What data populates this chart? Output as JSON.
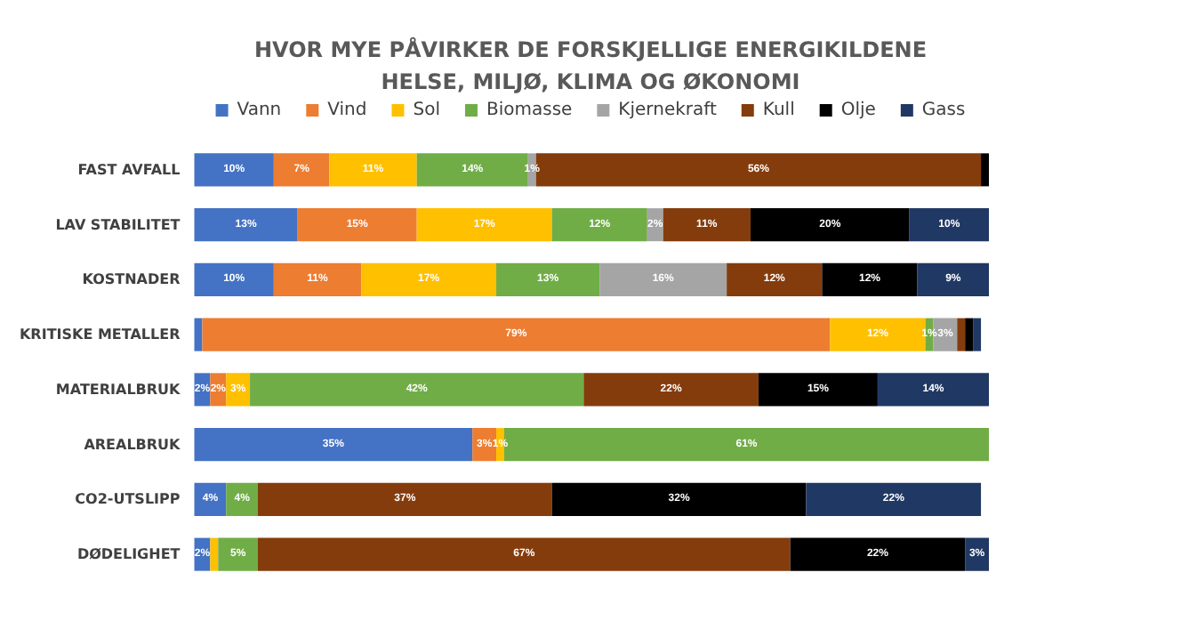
{
  "chart_data": {
    "type": "bar",
    "orientation": "horizontal",
    "stacked": true,
    "title": "HVOR MYE PÅVIRKER DE FORSKJELLIGE ENERGIKILDENE\nHELSE, MILJØ, KLIMA OG ØKONOMI",
    "categories": [
      "FAST AVFALL",
      "LAV STABILITET",
      "KOSTNADER",
      "KRITISKE METALLER",
      "MATERIALBRUK",
      "AREALBRUK",
      "CO2-UTSLIPP",
      "DØDELIGHET"
    ],
    "legend": "top",
    "series": [
      {
        "name": "Vann",
        "color": "#4472c4",
        "values": [
          10,
          13,
          10,
          1,
          2,
          35,
          4,
          2
        ],
        "value_labels": [
          "10%",
          "13%",
          "10%",
          null,
          "2%",
          "35%",
          "4%",
          "2%"
        ]
      },
      {
        "name": "Vind",
        "color": "#ed7d31",
        "values": [
          7,
          15,
          11,
          79,
          2,
          3,
          0,
          0
        ],
        "value_labels": [
          "7%",
          "15%",
          "11%",
          "79%",
          "2%",
          "3%",
          null,
          null
        ]
      },
      {
        "name": "Sol",
        "color": "#ffc000",
        "values": [
          11,
          17,
          17,
          12,
          3,
          1,
          0,
          1
        ],
        "value_labels": [
          "11%",
          "17%",
          "17%",
          "12%",
          "3%",
          "1%",
          null,
          null
        ]
      },
      {
        "name": "Biomasse",
        "color": "#70ad47",
        "values": [
          14,
          12,
          13,
          1,
          42,
          61,
          4,
          5
        ],
        "value_labels": [
          "14%",
          "12%",
          "13%",
          "1%",
          "42%",
          "61%",
          "4%",
          "5%"
        ]
      },
      {
        "name": "Kjernekraft",
        "color": "#a5a5a5",
        "values": [
          1,
          2,
          16,
          3,
          0,
          0,
          0,
          0
        ],
        "value_labels": [
          "1%",
          "2%",
          "16%",
          "3%",
          null,
          null,
          null,
          null
        ]
      },
      {
        "name": "Kull",
        "color": "#843c0c",
        "values": [
          56,
          11,
          12,
          1,
          22,
          0,
          37,
          67
        ],
        "value_labels": [
          "56%",
          "11%",
          "12%",
          null,
          "22%",
          null,
          "37%",
          "67%"
        ]
      },
      {
        "name": "Olje",
        "color": "#000000",
        "values": [
          1,
          20,
          12,
          1,
          15,
          0,
          32,
          22
        ],
        "value_labels": [
          null,
          "20%",
          "12%",
          null,
          "15%",
          null,
          "32%",
          "22%"
        ]
      },
      {
        "name": "Gass",
        "color": "#203864",
        "values": [
          0,
          10,
          9,
          1,
          14,
          0,
          22,
          3
        ],
        "value_labels": [
          null,
          "10%",
          "9%",
          null,
          "14%",
          null,
          "22%",
          "3%"
        ]
      }
    ]
  }
}
